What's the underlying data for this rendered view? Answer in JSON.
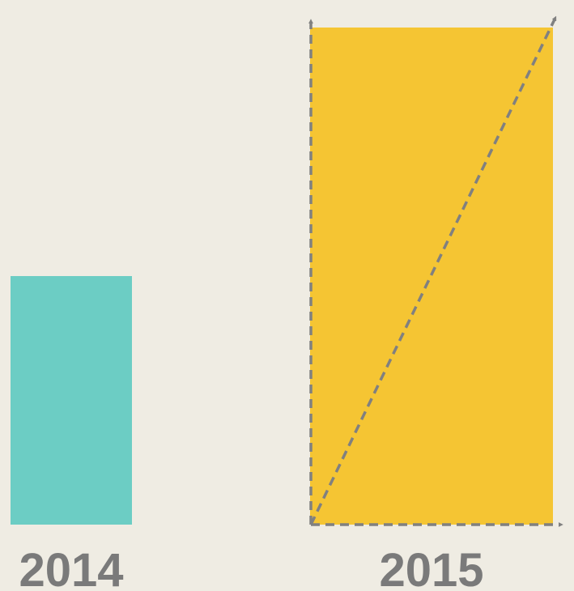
{
  "chart_data": {
    "type": "bar",
    "categories": [
      "2014",
      "2015"
    ],
    "values": [
      1,
      2
    ],
    "colors": [
      "#6ccdc4",
      "#f5c533"
    ]
  }
}
